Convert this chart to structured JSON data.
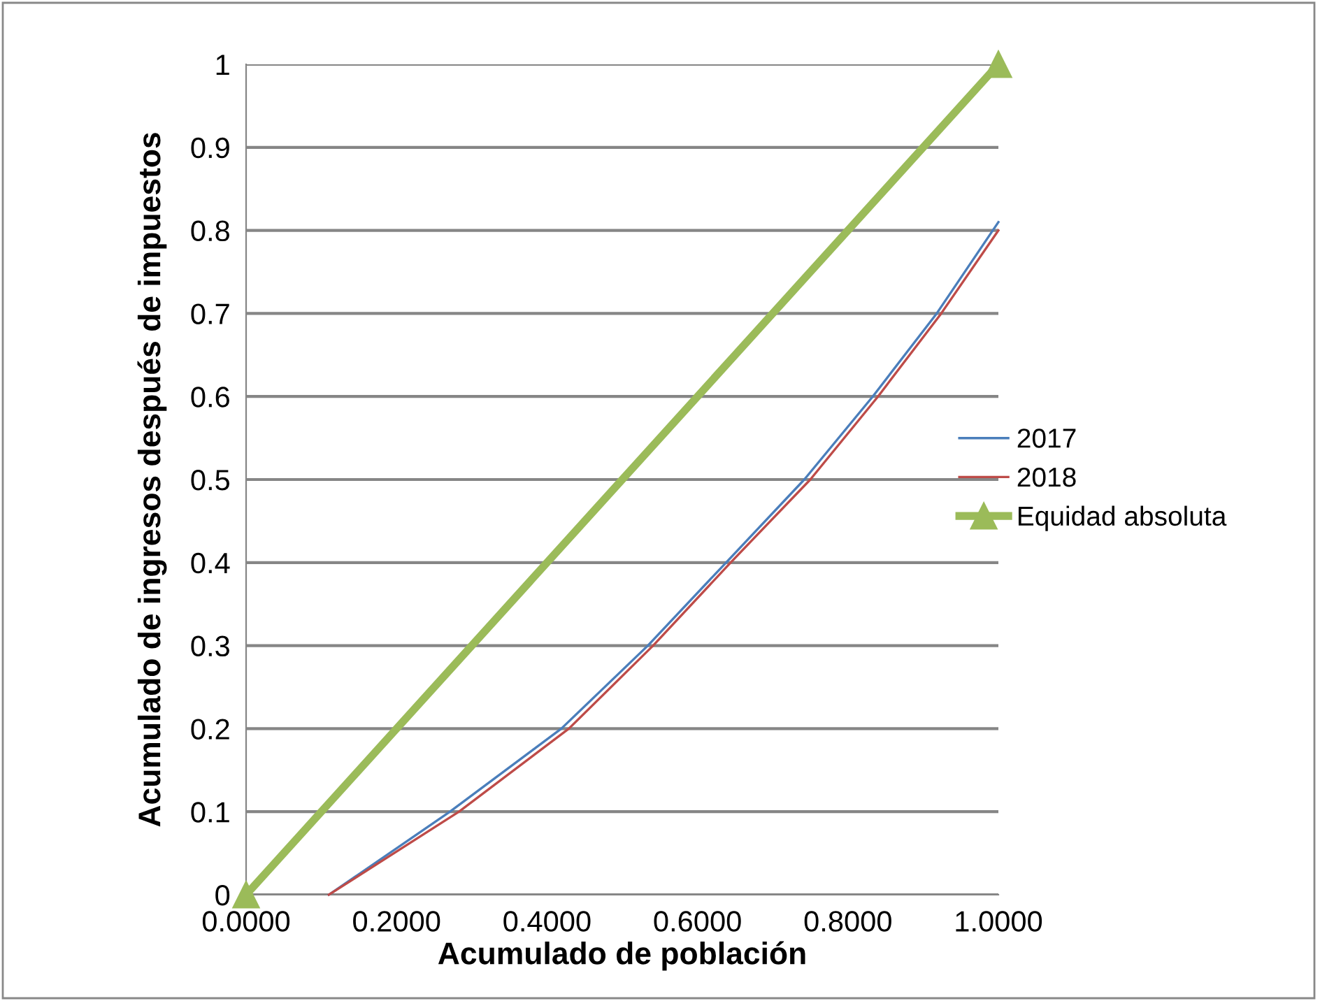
{
  "chart_data": {
    "type": "line",
    "xlabel": "Acumulado de población",
    "ylabel": "Acumulado de ingresos después de impuestos",
    "xlim": [
      0,
      1
    ],
    "ylim": [
      0,
      1
    ],
    "xticks": [
      {
        "value": 0,
        "label": "0.0000"
      },
      {
        "value": 0.2,
        "label": "0.2000"
      },
      {
        "value": 0.4,
        "label": "0.4000"
      },
      {
        "value": 0.6,
        "label": "0.6000"
      },
      {
        "value": 0.8,
        "label": "0.8000"
      },
      {
        "value": 1,
        "label": "1.0000"
      }
    ],
    "yticks": [
      0,
      0.1,
      0.2,
      0.3,
      0.4,
      0.5,
      0.6,
      0.7,
      0.8,
      0.9,
      1
    ],
    "grid": "y",
    "legend": "right",
    "series": [
      {
        "name": "2017",
        "color": "#4a7ebb",
        "x": [
          0.11,
          0.271,
          0.419,
          0.534,
          0.638,
          0.742,
          0.833,
          0.918,
          1.0
        ],
        "values": [
          0,
          0.1,
          0.2,
          0.3,
          0.4,
          0.5,
          0.6,
          0.7,
          0.81
        ]
      },
      {
        "name": "2018",
        "color": "#be4b48",
        "x": [
          0.11,
          0.283,
          0.429,
          0.541,
          0.644,
          0.75,
          0.84,
          0.924,
          1.0
        ],
        "values": [
          0,
          0.1,
          0.2,
          0.3,
          0.4,
          0.5,
          0.6,
          0.7,
          0.8
        ]
      },
      {
        "name": "Equidad absoluta",
        "color": "#9bbb59",
        "x": [
          0,
          1
        ],
        "values": [
          0,
          1
        ],
        "marker": "triangle"
      }
    ]
  }
}
